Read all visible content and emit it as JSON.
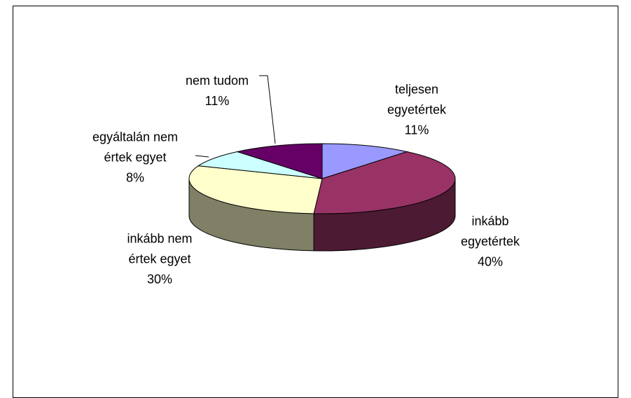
{
  "chart_data": {
    "type": "pie",
    "categories": [
      "teljesen\negyetértek",
      "inkább\negyetértek",
      "inkább nem\nértek egyet",
      "egyáltalán nem\nértek egyet",
      "nem tudom"
    ],
    "values": [
      11,
      40,
      30,
      8,
      11
    ],
    "value_labels": [
      "11%",
      "40%",
      "30%",
      "8%",
      "11%"
    ],
    "colors": [
      "#9999ff",
      "#993366",
      "#ffffcc",
      "#ccffff",
      "#660066"
    ]
  }
}
